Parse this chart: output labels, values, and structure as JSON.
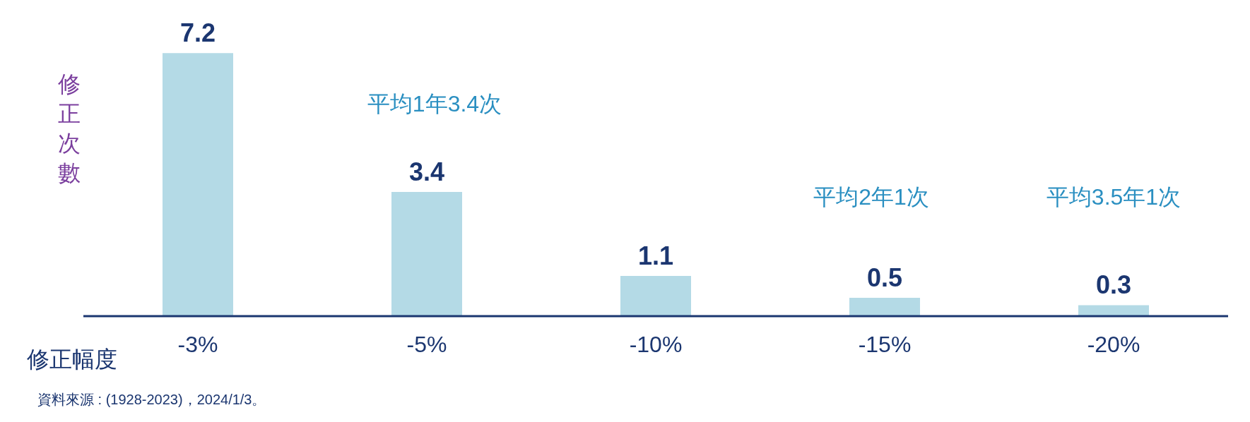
{
  "chart_data": {
    "type": "bar",
    "ylabel": "修正次數",
    "xlabel": "修正幅度",
    "categories": [
      "-3%",
      "-5%",
      "-10%",
      "-15%",
      "-20%"
    ],
    "values": [
      7.2,
      3.4,
      1.1,
      0.5,
      0.3
    ],
    "color": "#b4dae6",
    "data_labels": true,
    "annotations": [
      "平均1年3.4次",
      "平均2年1次",
      "平均3.5年1次",
      "資料來源 : (1928-2023)，2024/1/3。"
    ]
  }
}
